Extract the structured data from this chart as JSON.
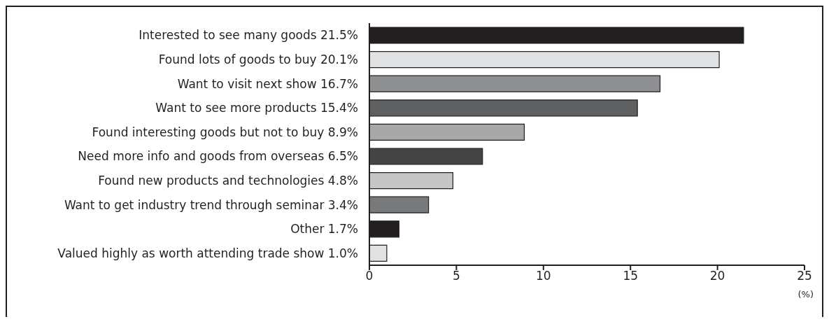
{
  "chart_data": {
    "type": "bar",
    "orientation": "horizontal",
    "categories": [
      "Interested to see many goods 21.5%",
      "Found lots of goods to buy 20.1%",
      "Want to visit next show 16.7%",
      "Want to see more products 15.4%",
      "Found interesting goods but not to buy 8.9%",
      "Need more info and goods from overseas 6.5%",
      "Found new products and technologies 4.8%",
      "Want to get industry trend through seminar 3.4%",
      "Other 1.7%",
      "Valued highly as worth attending trade show 1.0%"
    ],
    "values": [
      21.5,
      20.1,
      16.7,
      15.4,
      8.9,
      6.5,
      4.8,
      3.4,
      1.7,
      1.0
    ],
    "colors": [
      "#231f20",
      "#e0e1e3",
      "#8e8f91",
      "#5f6062",
      "#a7a8aa",
      "#444446",
      "#c5c6c8",
      "#78797b",
      "#231f20",
      "#e0e1e3"
    ],
    "xlabel": "(%)",
    "xlim": [
      0,
      25
    ],
    "xticks": [
      0,
      5,
      10,
      15,
      20,
      25
    ],
    "grid": false,
    "legend": false
  }
}
